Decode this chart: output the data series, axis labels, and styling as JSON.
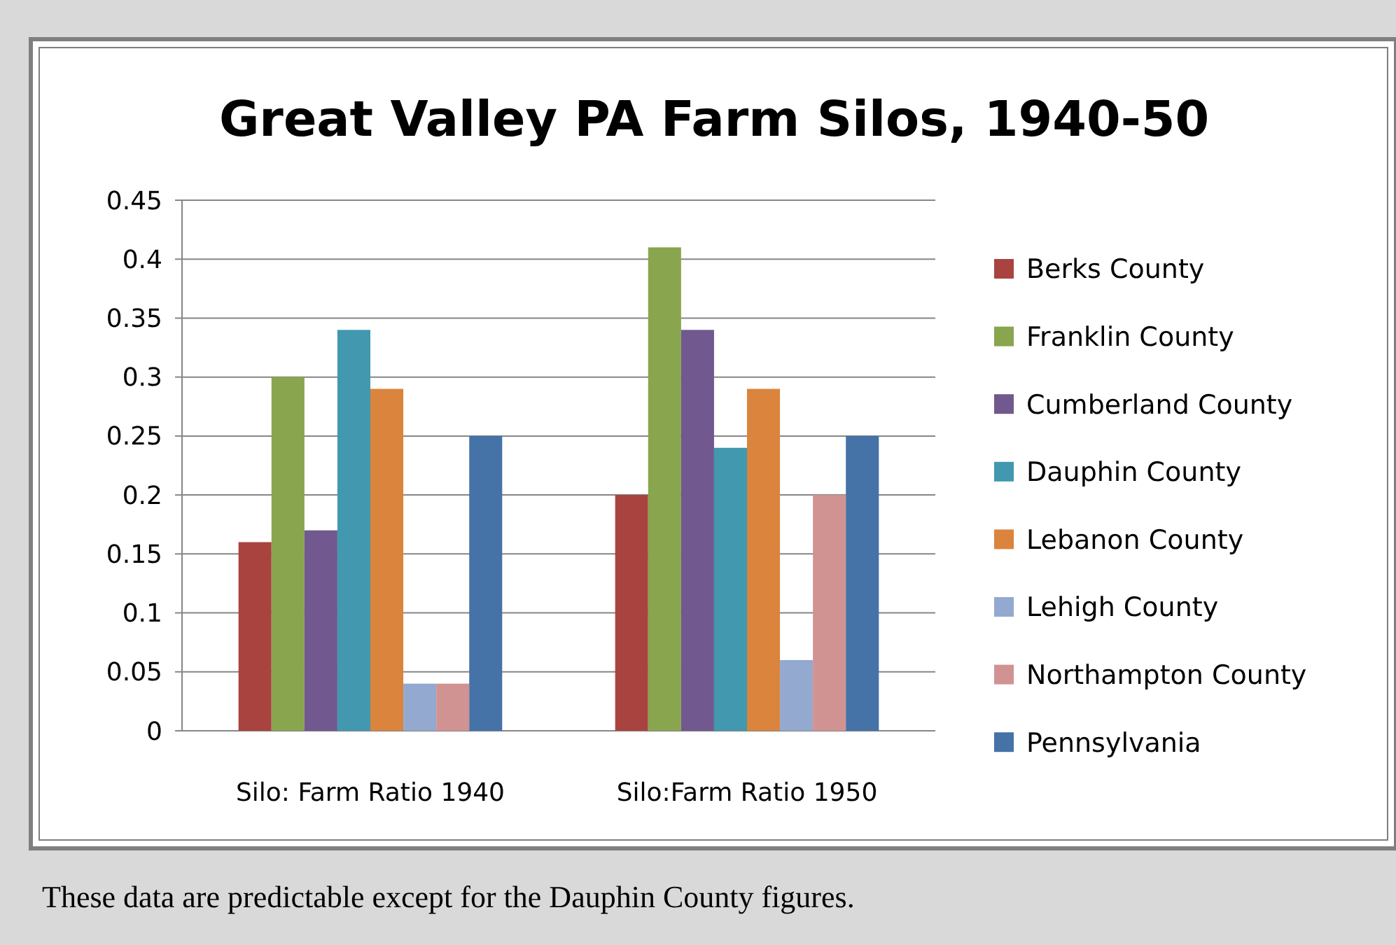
{
  "chart_data": {
    "type": "bar",
    "title": "Great Valley PA Farm Silos, 1940-50",
    "categories": [
      "Silo: Farm Ratio 1940",
      "Silo:Farm Ratio 1950"
    ],
    "series": [
      {
        "name": "Berks County",
        "color": "#a9433f",
        "values": [
          0.16,
          0.2
        ]
      },
      {
        "name": "Franklin County",
        "color": "#89a54e",
        "values": [
          0.3,
          0.41
        ]
      },
      {
        "name": "Cumberland County",
        "color": "#71588f",
        "values": [
          0.17,
          0.34
        ]
      },
      {
        "name": "Dauphin County",
        "color": "#4198af",
        "values": [
          0.34,
          0.24
        ]
      },
      {
        "name": "Lebanon County",
        "color": "#db843d",
        "values": [
          0.29,
          0.29
        ]
      },
      {
        "name": "Lehigh County",
        "color": "#93a9cf",
        "values": [
          0.04,
          0.06
        ]
      },
      {
        "name": "Northampton County",
        "color": "#d19392",
        "values": [
          0.04,
          0.2
        ]
      },
      {
        "name": "Pennsylvania",
        "color": "#4572a7",
        "values": [
          0.25,
          0.25
        ]
      }
    ],
    "ylim": [
      0,
      0.45
    ],
    "yticks": [
      0,
      0.05,
      0.1,
      0.15,
      0.2,
      0.25,
      0.3,
      0.35,
      0.4,
      0.45
    ],
    "grid": "y",
    "legend": "right",
    "annotations": [
      "These data are predictable except for the Dauphin County figures."
    ]
  }
}
